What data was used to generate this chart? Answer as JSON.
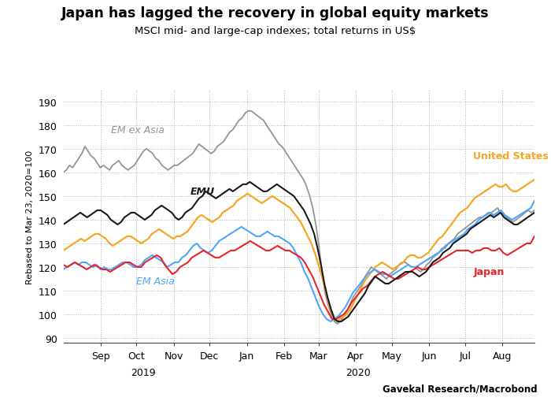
{
  "title": "Japan has lagged the recovery in global equity markets",
  "subtitle": "MSCI mid- and large-cap indexes; total returns in US$",
  "ylabel": "Rebased to Mar 23, 2020=100",
  "source": "Gavekal Research/Macrobond",
  "ylim": [
    88,
    195
  ],
  "yticks": [
    90,
    100,
    110,
    120,
    130,
    140,
    150,
    160,
    170,
    180,
    190
  ],
  "line_colors": {
    "em_ex_asia": "#959595",
    "emu": "#1a1a1a",
    "us": "#F5A623",
    "em_asia": "#4DA6FF",
    "japan": "#E8242B"
  },
  "line_labels": {
    "em_ex_asia": "EM ex Asia",
    "emu": "EMU",
    "us": "United States",
    "em_asia": "EM Asia",
    "japan": "Japan"
  },
  "em_ex_asia": [
    160,
    161,
    163,
    162,
    164,
    166,
    168,
    171,
    169,
    167,
    166,
    164,
    162,
    163,
    162,
    161,
    163,
    164,
    165,
    163,
    162,
    161,
    162,
    163,
    165,
    167,
    169,
    170,
    169,
    168,
    166,
    165,
    163,
    162,
    161,
    162,
    163,
    163,
    164,
    165,
    166,
    167,
    168,
    170,
    172,
    171,
    170,
    169,
    168,
    169,
    171,
    172,
    173,
    175,
    177,
    178,
    180,
    182,
    183,
    185,
    186,
    186,
    185,
    184,
    183,
    182,
    180,
    178,
    176,
    174,
    172,
    171,
    169,
    167,
    165,
    163,
    161,
    159,
    157,
    154,
    150,
    145,
    138,
    129,
    118,
    109,
    104,
    100,
    97,
    96,
    97,
    99,
    101,
    104,
    107,
    109,
    111,
    113,
    116,
    118,
    120,
    119,
    118,
    117,
    116,
    115,
    117,
    118,
    119,
    121,
    122,
    122,
    121,
    120,
    120,
    119,
    118,
    119,
    121,
    122,
    124,
    125,
    126,
    128,
    128,
    130,
    131,
    132,
    134,
    135,
    136,
    137,
    138,
    139,
    140,
    141,
    141,
    142,
    143,
    143,
    144,
    145,
    143,
    142,
    141,
    140,
    139,
    140,
    141,
    142,
    143,
    144,
    143,
    144
  ],
  "emu": [
    138,
    139,
    140,
    141,
    142,
    143,
    142,
    141,
    142,
    143,
    144,
    144,
    143,
    142,
    140,
    139,
    138,
    139,
    141,
    142,
    143,
    143,
    142,
    141,
    140,
    141,
    142,
    144,
    145,
    146,
    145,
    144,
    143,
    141,
    140,
    141,
    143,
    144,
    145,
    147,
    149,
    150,
    152,
    151,
    150,
    149,
    150,
    151,
    152,
    153,
    152,
    153,
    154,
    155,
    155,
    156,
    155,
    154,
    153,
    152,
    152,
    153,
    154,
    155,
    154,
    153,
    152,
    151,
    150,
    148,
    146,
    144,
    141,
    138,
    134,
    128,
    121,
    113,
    107,
    102,
    98,
    97,
    97,
    98,
    99,
    101,
    103,
    105,
    107,
    109,
    112,
    114,
    116,
    115,
    114,
    113,
    113,
    114,
    115,
    116,
    117,
    118,
    118,
    118,
    117,
    116,
    117,
    118,
    120,
    122,
    123,
    124,
    126,
    127,
    128,
    130,
    131,
    132,
    133,
    134,
    136,
    137,
    138,
    139,
    140,
    141,
    142,
    141,
    142,
    143,
    141,
    140,
    139,
    138,
    138,
    139,
    140,
    141,
    142,
    143
  ],
  "us": [
    127,
    128,
    129,
    130,
    131,
    132,
    131,
    132,
    133,
    134,
    134,
    133,
    132,
    130,
    129,
    130,
    131,
    132,
    133,
    133,
    132,
    131,
    130,
    131,
    132,
    134,
    135,
    136,
    135,
    134,
    133,
    132,
    133,
    133,
    134,
    135,
    137,
    139,
    141,
    142,
    141,
    140,
    139,
    140,
    141,
    143,
    144,
    145,
    146,
    148,
    149,
    150,
    151,
    150,
    149,
    148,
    147,
    148,
    149,
    150,
    149,
    148,
    147,
    146,
    145,
    143,
    141,
    139,
    136,
    133,
    130,
    126,
    121,
    116,
    110,
    104,
    100,
    97,
    98,
    99,
    100,
    102,
    105,
    108,
    111,
    114,
    116,
    118,
    120,
    121,
    122,
    121,
    120,
    119,
    120,
    121,
    122,
    124,
    125,
    125,
    124,
    124,
    125,
    126,
    128,
    130,
    132,
    133,
    135,
    137,
    139,
    141,
    143,
    144,
    145,
    147,
    149,
    150,
    151,
    152,
    153,
    154,
    155,
    154,
    154,
    155,
    153,
    152,
    152,
    153,
    154,
    155,
    156,
    157
  ],
  "em_asia": [
    119,
    120,
    121,
    122,
    121,
    122,
    122,
    121,
    120,
    121,
    119,
    120,
    119,
    119,
    120,
    121,
    122,
    122,
    121,
    120,
    120,
    121,
    123,
    124,
    125,
    124,
    123,
    122,
    120,
    121,
    122,
    122,
    124,
    125,
    127,
    129,
    130,
    128,
    127,
    126,
    127,
    129,
    131,
    132,
    133,
    134,
    135,
    136,
    137,
    136,
    135,
    134,
    133,
    133,
    134,
    135,
    134,
    133,
    133,
    132,
    131,
    130,
    128,
    125,
    122,
    118,
    115,
    111,
    107,
    103,
    100,
    98,
    97,
    98,
    99,
    101,
    103,
    106,
    109,
    111,
    113,
    115,
    117,
    118,
    119,
    118,
    117,
    117,
    116,
    117,
    118,
    119,
    120,
    121,
    120,
    120,
    121,
    122,
    123,
    124,
    125,
    126,
    127,
    129,
    130,
    131,
    132,
    133,
    134,
    136,
    137,
    138,
    140,
    141,
    142,
    143,
    142,
    143,
    144,
    142,
    141,
    140,
    141,
    142,
    143,
    144,
    145,
    148
  ],
  "japan": [
    121,
    120,
    121,
    122,
    121,
    120,
    119,
    120,
    121,
    120,
    119,
    119,
    118,
    119,
    120,
    121,
    122,
    122,
    121,
    120,
    120,
    122,
    123,
    124,
    125,
    124,
    121,
    119,
    117,
    118,
    120,
    121,
    122,
    124,
    125,
    126,
    127,
    126,
    125,
    124,
    124,
    125,
    126,
    127,
    127,
    128,
    129,
    130,
    131,
    130,
    129,
    128,
    127,
    127,
    128,
    129,
    128,
    127,
    127,
    126,
    125,
    124,
    122,
    119,
    116,
    112,
    108,
    104,
    101,
    98,
    98,
    99,
    100,
    102,
    105,
    107,
    109,
    111,
    112,
    114,
    116,
    117,
    118,
    117,
    116,
    115,
    115,
    116,
    117,
    118,
    119,
    120,
    119,
    119,
    120,
    121,
    122,
    123,
    124,
    125,
    126,
    127,
    127,
    127,
    127,
    126,
    127,
    127,
    128,
    128,
    127,
    127,
    128,
    126,
    125,
    126,
    127,
    128,
    129,
    130,
    130,
    133
  ],
  "background_color": "#ffffff",
  "grid_color": "#b0b0b0"
}
